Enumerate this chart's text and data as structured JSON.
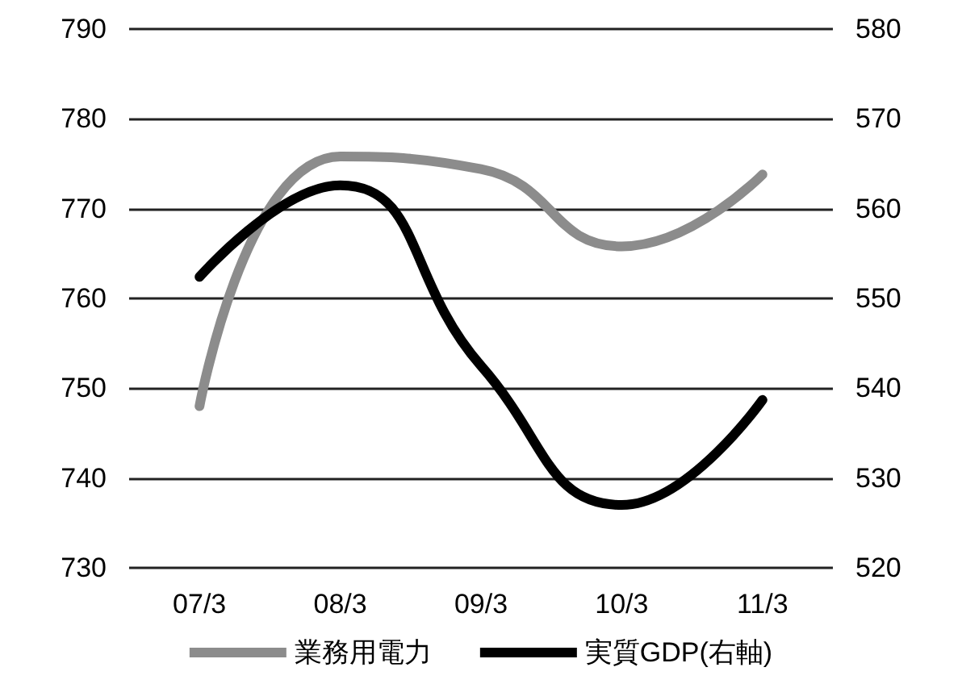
{
  "chart_data": {
    "type": "line",
    "categories": [
      "07/3",
      "08/3",
      "09/3",
      "10/3",
      "11/3"
    ],
    "series": [
      {
        "name": "業務用電力",
        "color": "#8c8c8c",
        "values": [
          748,
          775.8,
          774.4,
          765.8,
          773.8
        ]
      },
      {
        "name": "実質GDP(右軸)",
        "color": "#000000",
        "axis": "y2",
        "values": [
          552.4,
          562.6,
          542.5,
          527,
          538.7
        ]
      }
    ],
    "ylim": [
      730,
      790
    ],
    "yticks": [
      730,
      740,
      750,
      760,
      770,
      780,
      790
    ],
    "y2lim": [
      520,
      580
    ],
    "y2ticks": [
      520,
      530,
      540,
      550,
      560,
      570,
      580
    ],
    "grid": "y",
    "legend": "bottom",
    "marker": "none",
    "line_style": "solid"
  }
}
